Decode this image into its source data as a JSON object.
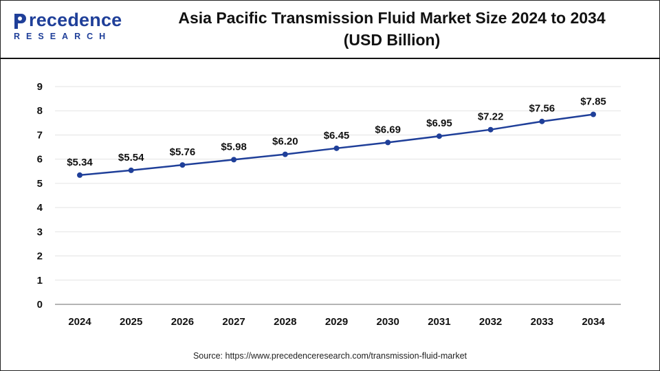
{
  "logo": {
    "word": "recedence",
    "initial": "P",
    "sub": "RESEARCH"
  },
  "title_line1": "Asia Pacific Transmission Fluid Market Size 2024 to 2034",
  "title_line2": "(USD Billion)",
  "source": "Source: https://www.precedenceresearch.com/transmission-fluid-market",
  "colors": {
    "line": "#1f3f99",
    "grid": "#e3e3e3",
    "axis": "#888888",
    "text": "#111111"
  },
  "chart_data": {
    "type": "line",
    "title": "Asia Pacific Transmission Fluid Market Size 2024 to 2034 (USD Billion)",
    "xlabel": "",
    "ylabel": "",
    "categories": [
      "2024",
      "2025",
      "2026",
      "2027",
      "2028",
      "2029",
      "2030",
      "2031",
      "2032",
      "2033",
      "2034"
    ],
    "values": [
      5.34,
      5.54,
      5.76,
      5.98,
      6.2,
      6.45,
      6.69,
      6.95,
      7.22,
      7.56,
      7.85
    ],
    "data_labels": [
      "$5.34",
      "$5.54",
      "$5.76",
      "$5.98",
      "$6.20",
      "$6.45",
      "$6.69",
      "$6.95",
      "$7.22",
      "$7.56",
      "$7.85"
    ],
    "yticks": [
      "0",
      "1",
      "2",
      "3",
      "4",
      "5",
      "6",
      "7",
      "8",
      "9"
    ],
    "ylim": [
      0,
      9
    ],
    "grid": true,
    "legend": "none"
  }
}
